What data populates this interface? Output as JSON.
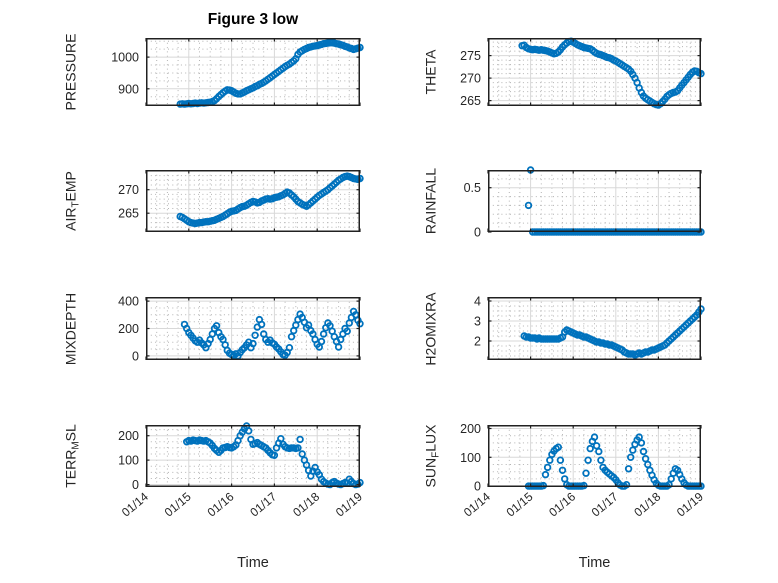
{
  "figure": {
    "title": "Figure 3 low",
    "xlabel": "Time",
    "background": "#ffffff",
    "marker_color": "#0072BD",
    "axis_color": "#212121",
    "major_grid_color": "#d8d8d8",
    "minor_grid_color": "#b4b4b4",
    "text_color": "#262626",
    "xtick_labels": [
      "01/14",
      "01/15",
      "01/16",
      "01/17",
      "01/18",
      "01/19"
    ],
    "xticks": [
      0,
      1,
      2,
      3,
      4,
      5
    ],
    "xlim": [
      0,
      5
    ]
  },
  "chart_data": [
    {
      "name": "pressure",
      "type": "scatter",
      "ylabel": {
        "pre": "PRESSURE",
        "sub": "",
        "post": ""
      },
      "yticks": [
        900,
        1000
      ],
      "ylim": [
        846,
        1060
      ],
      "minor_y_step": 25,
      "x0": 0.8,
      "dx": 0.05,
      "y": [
        852,
        853,
        852,
        853,
        854,
        853,
        854,
        855,
        854,
        855,
        856,
        855,
        856,
        857,
        858,
        860,
        863,
        869,
        876,
        882,
        888,
        893,
        897,
        896,
        894,
        890,
        886,
        884,
        884,
        887,
        890,
        894,
        897,
        900,
        903,
        907,
        910,
        914,
        917,
        921,
        925,
        930,
        935,
        940,
        945,
        950,
        955,
        960,
        965,
        970,
        974,
        978,
        983,
        988,
        995,
        1008,
        1016,
        1020,
        1024,
        1027,
        1030,
        1032,
        1034,
        1035,
        1036,
        1038,
        1040,
        1042,
        1043,
        1044,
        1045,
        1045,
        1044,
        1042,
        1041,
        1039,
        1037,
        1034,
        1032,
        1029,
        1027,
        1024,
        1026,
        1028,
        1030
      ]
    },
    {
      "name": "theta",
      "type": "scatter",
      "ylabel": {
        "pre": "THETA",
        "sub": "",
        "post": ""
      },
      "yticks": [
        265,
        270,
        275
      ],
      "ylim": [
        263.8,
        278.9
      ],
      "minor_y_step": 1,
      "x0": 0.8,
      "dx": 0.05,
      "y": [
        277.2,
        277.3,
        276.8,
        276.5,
        276.4,
        276.3,
        276.4,
        276.3,
        276.2,
        276.3,
        276.2,
        276.1,
        276.0,
        275.8,
        275.6,
        275.4,
        275.5,
        275.8,
        276.3,
        276.9,
        277.4,
        277.8,
        278.1,
        278.2,
        278.0,
        277.7,
        277.4,
        277.2,
        277.0,
        276.8,
        276.7,
        276.6,
        276.5,
        276.2,
        275.8,
        275.5,
        275.3,
        275.2,
        275.0,
        274.8,
        274.6,
        274.5,
        274.3,
        274.0,
        273.8,
        273.5,
        273.2,
        272.9,
        272.6,
        272.3,
        272.0,
        271.5,
        270.8,
        270.0,
        269.0,
        267.8,
        266.8,
        266.0,
        265.5,
        265.2,
        264.9,
        264.6,
        264.3,
        264.1,
        264.0,
        264.3,
        264.8,
        265.3,
        265.9,
        266.3,
        266.6,
        266.8,
        266.9,
        267.2,
        267.8,
        268.4,
        269.0,
        269.6,
        270.2,
        270.8,
        271.3,
        271.6,
        271.5,
        271.2,
        271.0
      ]
    },
    {
      "name": "air-temp",
      "type": "scatter",
      "ylabel": {
        "pre": "AIR",
        "sub": "T",
        "post": "EMP"
      },
      "yticks": [
        265,
        270
      ],
      "ylim": [
        261,
        274.2
      ],
      "minor_y_step": 1,
      "x0": 0.8,
      "dx": 0.05,
      "y": [
        264.3,
        264.1,
        263.8,
        263.5,
        263.2,
        263.0,
        262.9,
        262.8,
        262.9,
        263.0,
        263.0,
        263.1,
        263.2,
        263.2,
        263.3,
        263.4,
        263.5,
        263.7,
        263.9,
        264.1,
        264.3,
        264.6,
        264.9,
        265.2,
        265.4,
        265.5,
        265.6,
        265.9,
        266.2,
        266.4,
        266.5,
        266.7,
        267.0,
        267.3,
        267.5,
        267.4,
        267.2,
        267.3,
        267.6,
        267.8,
        268.0,
        268.1,
        268.0,
        268.1,
        268.3,
        268.4,
        268.5,
        268.7,
        268.9,
        269.2,
        269.5,
        269.3,
        268.9,
        268.5,
        268.0,
        267.5,
        267.2,
        266.9,
        266.7,
        266.5,
        266.8,
        267.2,
        267.6,
        268.0,
        268.4,
        268.8,
        269.1,
        269.4,
        269.7,
        270.0,
        270.4,
        270.8,
        271.2,
        271.6,
        272.0,
        272.3,
        272.6,
        272.8,
        272.9,
        272.8,
        272.6,
        272.4,
        272.3,
        272.2,
        272.4
      ]
    },
    {
      "name": "rainfall",
      "type": "scatter",
      "ylabel": {
        "pre": "RAINFALL",
        "sub": "",
        "post": ""
      },
      "yticks": [
        0,
        0.5
      ],
      "ylim": [
        0,
        0.7
      ],
      "minor_y_step": 0.1,
      "x0": 0.95,
      "dx": 0.05,
      "y": [
        0.3,
        0.7,
        0,
        0,
        0,
        0,
        0,
        0,
        0,
        0,
        0,
        0,
        0,
        0,
        0,
        0,
        0,
        0,
        0,
        0,
        0,
        0,
        0,
        0,
        0,
        0,
        0,
        0,
        0,
        0,
        0,
        0,
        0,
        0,
        0,
        0,
        0,
        0,
        0,
        0,
        0,
        0,
        0,
        0,
        0,
        0,
        0,
        0,
        0,
        0,
        0,
        0,
        0,
        0,
        0,
        0,
        0,
        0,
        0,
        0,
        0,
        0,
        0,
        0,
        0,
        0,
        0,
        0,
        0,
        0,
        0,
        0,
        0,
        0,
        0,
        0,
        0,
        0,
        0,
        0,
        0,
        0
      ]
    },
    {
      "name": "mixdepth",
      "type": "scatter",
      "ylabel": {
        "pre": "MIXDEPTH",
        "sub": "",
        "post": ""
      },
      "yticks": [
        0,
        200,
        400
      ],
      "ylim": [
        -30,
        430
      ],
      "minor_y_step": 50,
      "x0": 0.9,
      "dx": 0.05,
      "y": [
        230,
        200,
        170,
        150,
        130,
        110,
        100,
        115,
        95,
        80,
        60,
        90,
        120,
        160,
        200,
        220,
        170,
        140,
        120,
        80,
        40,
        20,
        10,
        5,
        15,
        0,
        25,
        45,
        60,
        80,
        100,
        60,
        90,
        150,
        210,
        265,
        230,
        160,
        120,
        100,
        115,
        95,
        85,
        65,
        50,
        30,
        10,
        5,
        25,
        60,
        140,
        185,
        225,
        265,
        305,
        280,
        245,
        205,
        225,
        185,
        160,
        120,
        85,
        65,
        105,
        160,
        205,
        240,
        220,
        180,
        140,
        105,
        65,
        120,
        160,
        200,
        180,
        240,
        280,
        325,
        300,
        260,
        235
      ]
    },
    {
      "name": "h2omixra",
      "type": "scatter",
      "ylabel": {
        "pre": "H2OMIXRA",
        "sub": "",
        "post": ""
      },
      "yticks": [
        2,
        3,
        4
      ],
      "ylim": [
        1.05,
        4.2
      ],
      "minor_y_step": 0.25,
      "x0": 0.85,
      "dx": 0.05,
      "y": [
        2.25,
        2.2,
        2.2,
        2.15,
        2.15,
        2.15,
        2.1,
        2.15,
        2.1,
        2.1,
        2.1,
        2.1,
        2.1,
        2.1,
        2.1,
        2.1,
        2.1,
        2.15,
        2.2,
        2.45,
        2.55,
        2.5,
        2.45,
        2.4,
        2.35,
        2.3,
        2.3,
        2.25,
        2.2,
        2.2,
        2.15,
        2.1,
        2.05,
        2.0,
        1.95,
        1.95,
        1.9,
        1.9,
        1.85,
        1.85,
        1.8,
        1.8,
        1.75,
        1.7,
        1.65,
        1.6,
        1.55,
        1.45,
        1.4,
        1.35,
        1.35,
        1.35,
        1.3,
        1.35,
        1.4,
        1.35,
        1.4,
        1.45,
        1.45,
        1.5,
        1.55,
        1.55,
        1.6,
        1.65,
        1.7,
        1.75,
        1.8,
        1.9,
        2.0,
        2.1,
        2.2,
        2.3,
        2.4,
        2.5,
        2.6,
        2.7,
        2.8,
        2.9,
        3.0,
        3.1,
        3.2,
        3.3,
        3.45,
        3.6
      ]
    },
    {
      "name": "terr-msl",
      "type": "scatter",
      "ylabel": {
        "pre": "TERR",
        "sub": "M",
        "post": "SL"
      },
      "yticks": [
        0,
        100,
        200
      ],
      "ylim": [
        -10,
        244
      ],
      "minor_y_step": 25,
      "x0": 0.95,
      "dx": 0.05,
      "y": [
        175,
        180,
        178,
        182,
        180,
        178,
        182,
        180,
        178,
        180,
        175,
        170,
        160,
        148,
        140,
        132,
        140,
        150,
        152,
        155,
        152,
        150,
        155,
        162,
        180,
        200,
        215,
        228,
        240,
        220,
        185,
        165,
        168,
        172,
        165,
        160,
        155,
        150,
        140,
        130,
        122,
        120,
        150,
        170,
        188,
        165,
        155,
        150,
        148,
        150,
        150,
        148,
        150,
        185,
        125,
        100,
        80,
        58,
        35,
        55,
        70,
        52,
        40,
        22,
        12,
        6,
        2,
        0,
        8,
        12,
        6,
        2,
        0,
        4,
        8,
        6,
        22,
        12,
        4,
        0,
        2,
        8
      ]
    },
    {
      "name": "sun-flux",
      "type": "scatter",
      "ylabel": {
        "pre": "SUN",
        "sub": "F",
        "post": "LUX"
      },
      "yticks": [
        0,
        100,
        200
      ],
      "ylim": [
        -3,
        212
      ],
      "minor_y_step": 25,
      "x0": 0.95,
      "dx": 0.05,
      "y": [
        0,
        0,
        0,
        0,
        0,
        0,
        0,
        2,
        40,
        65,
        90,
        110,
        122,
        130,
        135,
        90,
        55,
        25,
        5,
        0,
        0,
        0,
        0,
        0,
        0,
        0,
        2,
        45,
        90,
        130,
        155,
        170,
        140,
        120,
        90,
        65,
        55,
        48,
        42,
        36,
        30,
        22,
        12,
        4,
        0,
        0,
        5,
        60,
        100,
        125,
        145,
        160,
        170,
        150,
        120,
        95,
        75,
        55,
        38,
        22,
        10,
        3,
        0,
        0,
        0,
        0,
        5,
        25,
        45,
        60,
        55,
        40,
        25,
        12,
        4,
        0,
        0,
        0,
        0,
        0,
        0,
        0
      ]
    }
  ]
}
